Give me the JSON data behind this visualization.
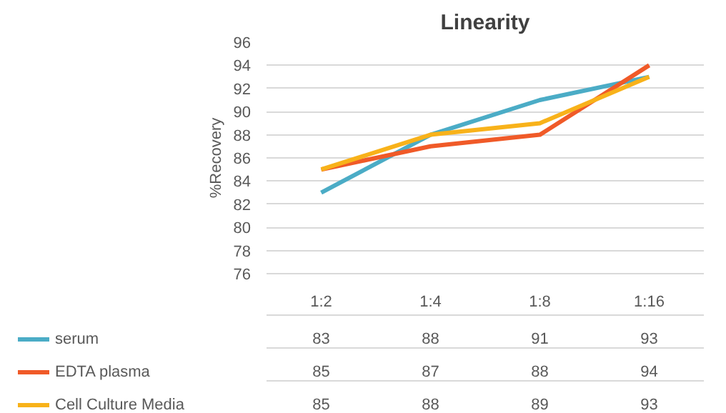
{
  "chart_data": {
    "type": "line",
    "title": "Linearity",
    "ylabel": "%Recovery",
    "categories": [
      "1:2",
      "1:4",
      "1:8",
      "1:16"
    ],
    "series": [
      {
        "name": "serum",
        "color": "#4bacc6",
        "values": [
          83,
          88,
          91,
          93
        ]
      },
      {
        "name": "EDTA plasma",
        "color": "#f05a28",
        "values": [
          85,
          87,
          88,
          94
        ]
      },
      {
        "name": "Cell Culture Media",
        "color": "#f8b21a",
        "values": [
          85,
          88,
          89,
          93
        ]
      }
    ],
    "ylim": [
      76,
      96
    ],
    "yticks": [
      76,
      78,
      80,
      82,
      84,
      86,
      88,
      90,
      92,
      94,
      96
    ],
    "grid": "y",
    "legend": "bottom",
    "data_labels": true,
    "line_style": "solid"
  }
}
